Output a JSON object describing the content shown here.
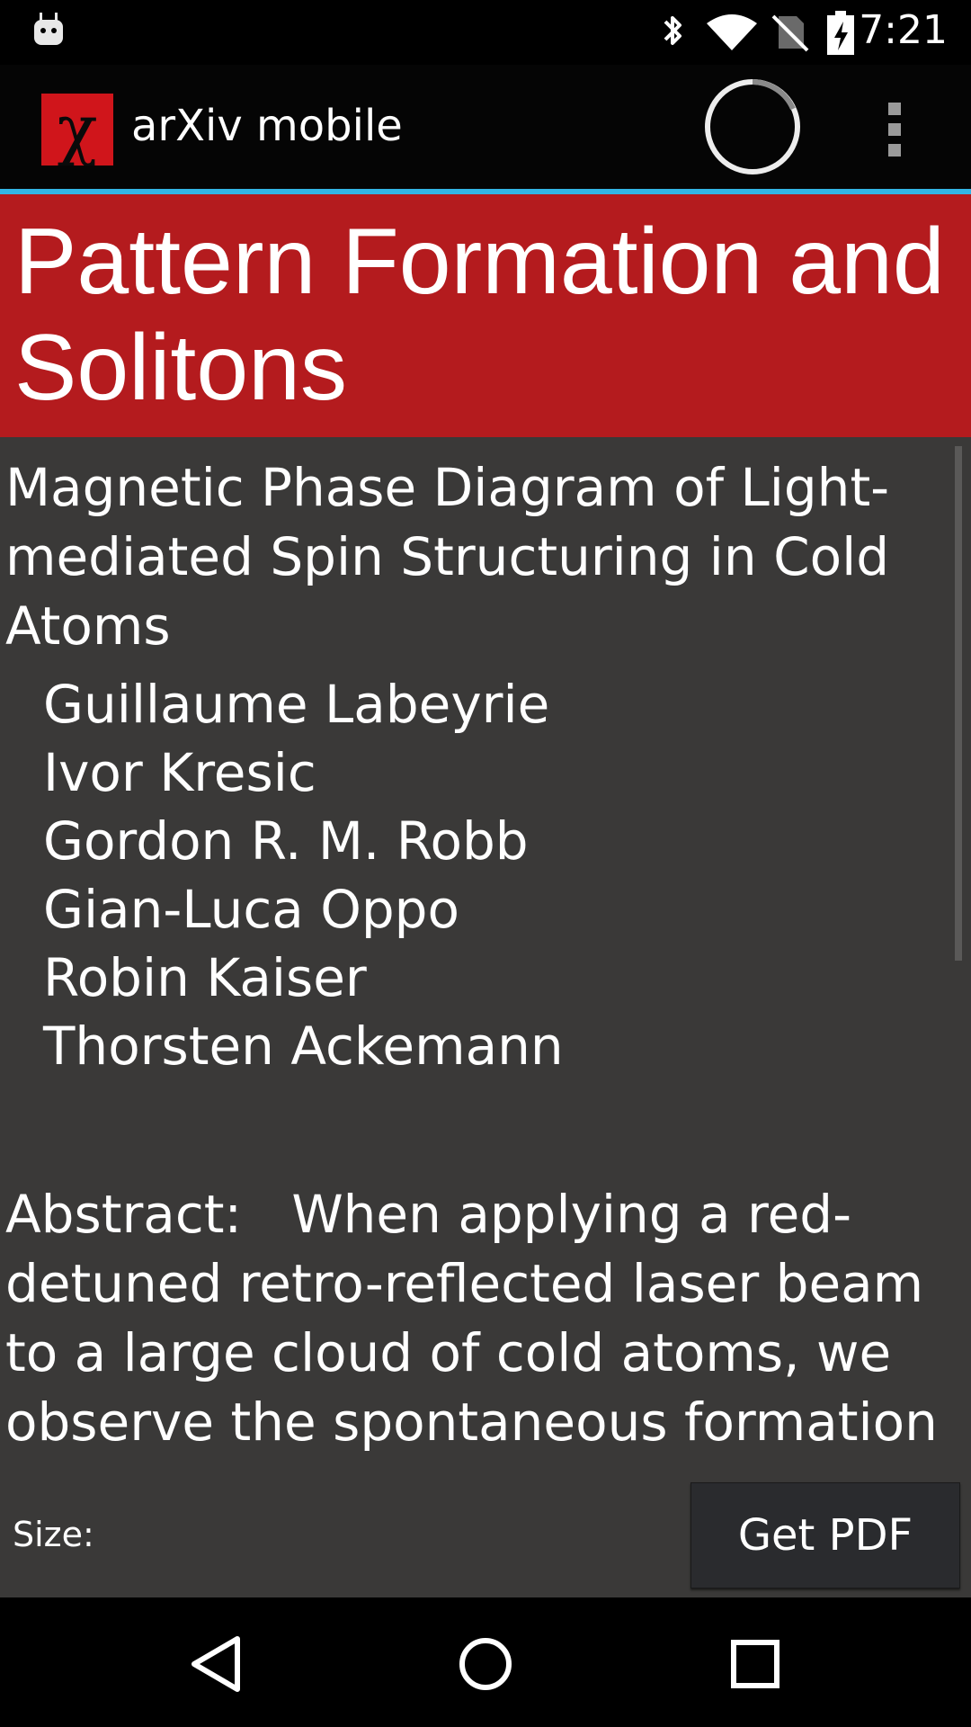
{
  "status_bar": {
    "time": "7:21",
    "icons": [
      "android-icon",
      "bluetooth-icon",
      "wifi-icon",
      "no-sim-icon",
      "battery-charging-icon"
    ]
  },
  "action_bar": {
    "logo_glyph": "χ",
    "app_title": "arXiv mobile",
    "icons": [
      "arxiv-logo-icon",
      "loading-spinner-icon",
      "overflow-menu-icon"
    ]
  },
  "category": {
    "title": "Pattern Formation and Solitons",
    "color": "#b41b1e"
  },
  "paper": {
    "title": "Magnetic Phase Diagram of Light-mediated Spin Structuring in Cold Atoms",
    "authors": [
      "Guillaume Labeyrie",
      "Ivor Kresic",
      "Gordon R. M. Robb",
      "Gian-Luca Oppo",
      "Robin Kaiser",
      "Thorsten Ackemann"
    ],
    "abstract_label": "Abstract:",
    "abstract_text": "When applying a red-detuned retro-reflected laser beam to a large cloud of cold atoms, we observe the spontaneous formation of magnetic structures and"
  },
  "bottom_bar": {
    "size_label": "Size:",
    "pdf_button": "Get PDF"
  },
  "nav_bar": {
    "icons": [
      "back-icon",
      "home-icon",
      "recents-icon"
    ]
  },
  "colors": {
    "accent": "#33b5e5",
    "background": "#3a3938",
    "logo": "#d0151b"
  }
}
